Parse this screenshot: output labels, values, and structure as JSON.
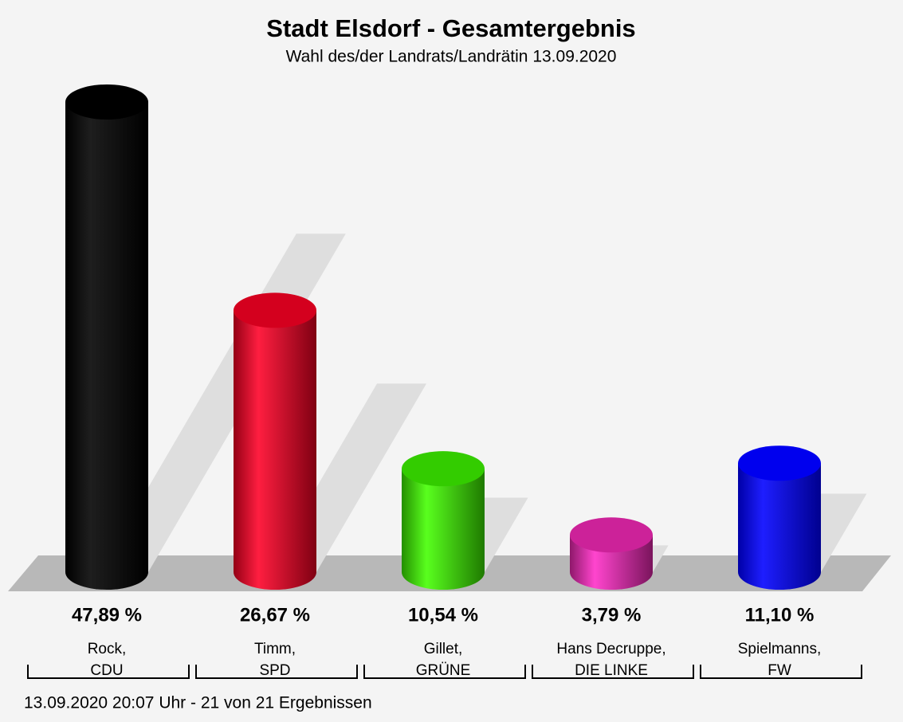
{
  "chart_data": {
    "type": "bar",
    "title": "Stadt Elsdorf - Gesamtergebnis",
    "subtitle": "Wahl des/der Landrats/Landrätin 13.09.2020",
    "footer": "13.09.2020 20:07 Uhr - 21 von 21 Ergebnissen",
    "categories": [
      [
        "Rock,",
        "CDU"
      ],
      [
        "Timm,",
        "SPD"
      ],
      [
        "Gillet,",
        "GRÜNE"
      ],
      [
        "Hans Decruppe,",
        "DIE LINKE"
      ],
      [
        "Spielmanns,",
        "FW"
      ]
    ],
    "values": [
      47.89,
      26.67,
      10.54,
      3.79,
      11.1
    ],
    "value_labels": [
      "47,89 %",
      "26,67 %",
      "10,54 %",
      "3,79 %",
      "11,10 %"
    ],
    "colors": [
      "#000000",
      "#d4001e",
      "#33cc00",
      "#cc2299",
      "#0000ee"
    ]
  }
}
